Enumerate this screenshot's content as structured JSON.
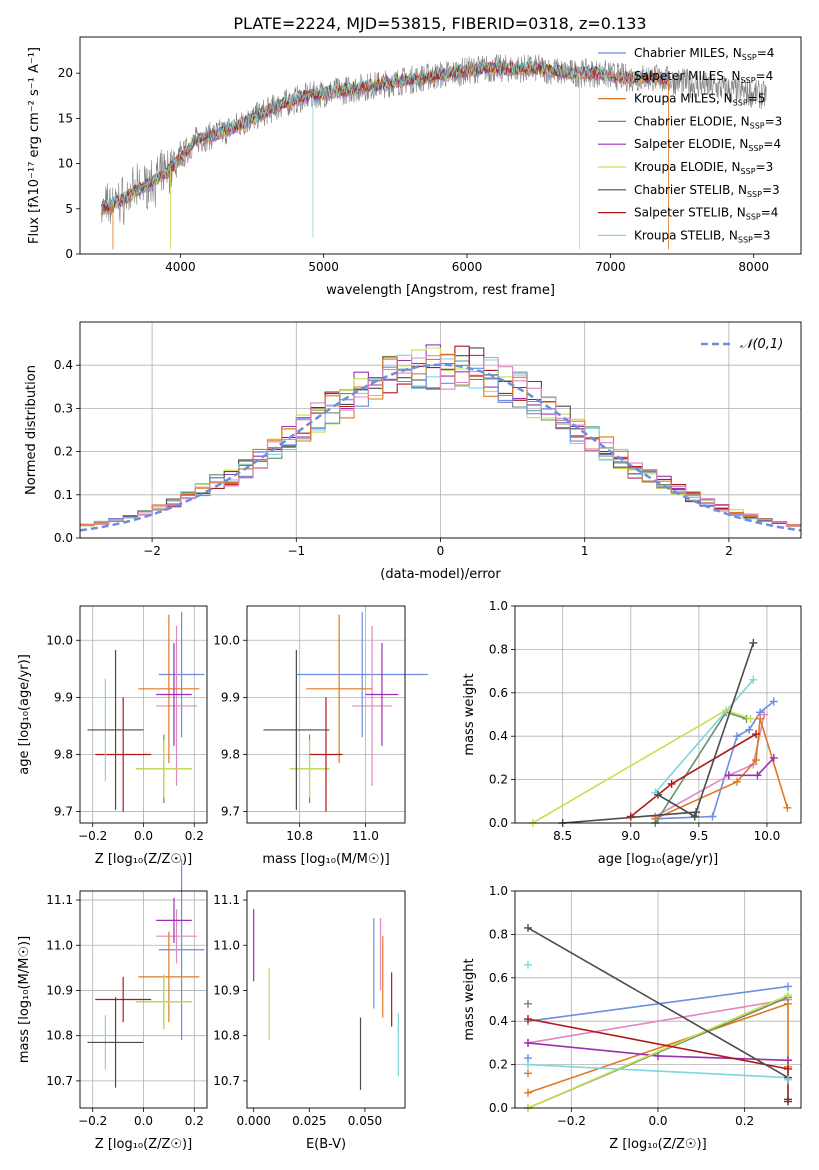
{
  "figure": {
    "title": "PLATE=2224, MJD=53815, FIBERID=0318, z=0.133"
  },
  "colors": {
    "series": [
      "#6b8e6b",
      "#9b30b0",
      "#c8e050",
      "#4c4c4c",
      "#b01818",
      "#7fd6dc",
      "#6a8ee0",
      "#e07820",
      "#e088c0"
    ]
  },
  "legend_spectrum": [
    {
      "label": "Chabrier MILES, N",
      "sub": "SSP",
      "tail": "=4",
      "color": "#6a8ee0"
    },
    {
      "label": "Salpeter MILES, N",
      "sub": "SSP",
      "tail": "=4",
      "color": "#e088c0"
    },
    {
      "label": "Kroupa MILES, N",
      "sub": "SSP",
      "tail": "=5",
      "color": "#e07820"
    },
    {
      "label": "Chabrier ELODIE, N",
      "sub": "SSP",
      "tail": "=3",
      "color": "#6b8e6b"
    },
    {
      "label": "Salpeter ELODIE, N",
      "sub": "SSP",
      "tail": "=4",
      "color": "#9b30b0"
    },
    {
      "label": "Kroupa ELODIE, N",
      "sub": "SSP",
      "tail": "=3",
      "color": "#c8e050"
    },
    {
      "label": "Chabrier STELIB, N",
      "sub": "SSP",
      "tail": "=3",
      "color": "#4c4c4c"
    },
    {
      "label": "Salpeter STELIB, N",
      "sub": "SSP",
      "tail": "=4",
      "color": "#b01818"
    },
    {
      "label": "Kroupa STELIB, N",
      "sub": "SSP",
      "tail": "=3",
      "color": "#7fd6dc"
    }
  ],
  "chart_data": [
    {
      "id": "spectrum",
      "type": "line",
      "title": "PLATE=2224, MJD=53815, FIBERID=0318, z=0.133",
      "xlabel": "wavelength [Angstrom, rest frame]",
      "ylabel": "Flux [fλ10⁻¹⁷ erg cm⁻² s⁻¹ A⁻¹]",
      "xlim": [
        3300,
        8330
      ],
      "ylim": [
        0,
        24
      ],
      "xticks": [
        4000,
        5000,
        6000,
        7000,
        8000
      ],
      "yticks": [
        0,
        5,
        10,
        15,
        20
      ],
      "grid": false,
      "legend": "upper-right",
      "data_envelope": {
        "x": [
          3450,
          3600,
          3750,
          3900,
          4000,
          4100,
          4300,
          4500,
          4700,
          4900,
          5100,
          5300,
          5500,
          5700,
          5900,
          6100,
          6300,
          6500,
          6700,
          6900,
          7100,
          7300,
          7500,
          7700,
          7900,
          8090
        ],
        "y": [
          5.0,
          6.0,
          7.5,
          9.0,
          10.5,
          12.5,
          13.5,
          15.0,
          16.5,
          17.5,
          18.0,
          18.5,
          19.0,
          19.5,
          20.0,
          20.5,
          20.5,
          20.5,
          20.0,
          20.0,
          19.5,
          19.5,
          19.0,
          18.5,
          18.0,
          17.5
        ]
      },
      "model_x_range": [
        3450,
        7420
      ]
    },
    {
      "id": "residuals",
      "type": "histogram",
      "xlabel": "(data-model)/error",
      "ylabel": "Normed distribution",
      "xlim": [
        -2.5,
        2.5
      ],
      "ylim": [
        0,
        0.5
      ],
      "xticks": [
        -2,
        -1,
        0,
        1,
        2
      ],
      "yticks": [
        0.0,
        0.1,
        0.2,
        0.3,
        0.4
      ],
      "grid": true,
      "legend": "upper-right",
      "reference": {
        "name": "𝒩(0,1)",
        "mean": 0,
        "sigma": 1
      }
    },
    {
      "id": "age_vs_Z",
      "type": "scatter",
      "xlabel": "Z [log₁₀(Z/Z☉)]",
      "ylabel": "age [log₁₀(age/yr)]",
      "xlim": [
        -0.25,
        0.25
      ],
      "ylim": [
        9.68,
        10.06
      ],
      "xticks": [
        -0.2,
        0.0,
        0.2
      ],
      "yticks": [
        9.7,
        9.8,
        9.9,
        10.0
      ],
      "grid": true,
      "points": [
        {
          "x": 0.15,
          "y": 9.94,
          "xerr": 0.09,
          "yerr": 0.11,
          "c": 6
        },
        {
          "x": 0.13,
          "y": 9.885,
          "xerr": 0.08,
          "yerr": 0.14,
          "c": 8
        },
        {
          "x": 0.1,
          "y": 9.915,
          "xerr": 0.12,
          "yerr": 0.13,
          "c": 7
        },
        {
          "x": 0.12,
          "y": 9.905,
          "xerr": 0.07,
          "yerr": 0.09,
          "c": 1
        },
        {
          "x": 0.08,
          "y": 9.775,
          "xerr": 0.11,
          "yerr": 0.06,
          "c": 0
        },
        {
          "x": 0.08,
          "y": 9.775,
          "xerr": 0.11,
          "yerr": 0.05,
          "c": 2
        },
        {
          "x": -0.08,
          "y": 9.8,
          "xerr": 0.11,
          "yerr": 0.1,
          "c": 4
        },
        {
          "x": -0.15,
          "y": 9.843,
          "xerr": 0.07,
          "yerr": 0.09,
          "c": 5
        },
        {
          "x": -0.11,
          "y": 9.843,
          "xerr": 0.11,
          "yerr": 0.14,
          "c": 3
        }
      ]
    },
    {
      "id": "age_vs_mass",
      "type": "scatter",
      "xlabel": "mass [log₁₀(M/M☉)]",
      "ylabel": "",
      "xlim": [
        10.64,
        11.12
      ],
      "ylim": [
        9.68,
        10.06
      ],
      "xticks": [
        10.8,
        11.0
      ],
      "yticks": [
        9.7,
        9.8,
        9.9,
        10.0
      ],
      "grid": true,
      "points": [
        {
          "x": 10.99,
          "y": 9.94,
          "xerr": 0.2,
          "yerr": 0.11,
          "c": 6
        },
        {
          "x": 11.02,
          "y": 9.885,
          "xerr": 0.06,
          "yerr": 0.14,
          "c": 8
        },
        {
          "x": 10.92,
          "y": 9.915,
          "xerr": 0.1,
          "yerr": 0.13,
          "c": 7
        },
        {
          "x": 11.05,
          "y": 9.905,
          "xerr": 0.05,
          "yerr": 0.09,
          "c": 1
        },
        {
          "x": 10.83,
          "y": 9.775,
          "xerr": 0.06,
          "yerr": 0.06,
          "c": 0
        },
        {
          "x": 10.83,
          "y": 9.775,
          "xerr": 0.06,
          "yerr": 0.05,
          "c": 2
        },
        {
          "x": 10.88,
          "y": 9.8,
          "xerr": 0.05,
          "yerr": 0.1,
          "c": 4
        },
        {
          "x": 10.79,
          "y": 9.843,
          "xerr": 0.06,
          "yerr": 0.09,
          "c": 5
        },
        {
          "x": 10.79,
          "y": 9.843,
          "xerr": 0.1,
          "yerr": 0.14,
          "c": 3
        }
      ]
    },
    {
      "id": "weight_vs_age",
      "type": "line",
      "xlabel": "age [log₁₀(age/yr)]",
      "ylabel": "mass weight",
      "xlim": [
        8.15,
        10.25
      ],
      "ylim": [
        0,
        1
      ],
      "xticks": [
        8.5,
        9.0,
        9.5,
        10.0
      ],
      "yticks": [
        0.0,
        0.2,
        0.4,
        0.6,
        0.8,
        1.0
      ],
      "grid": true,
      "series": [
        {
          "c": 6,
          "x": [
            9.2,
            9.6,
            9.78,
            9.87,
            9.95,
            10.05
          ],
          "y": [
            0.02,
            0.03,
            0.4,
            0.43,
            0.51,
            0.56
          ]
        },
        {
          "c": 8,
          "x": [
            9.18,
            9.72,
            9.9,
            9.98
          ],
          "y": [
            0.03,
            0.22,
            0.27,
            0.5
          ]
        },
        {
          "c": 7,
          "x": [
            9.18,
            9.78,
            9.92,
            9.95,
            10.15
          ],
          "y": [
            0.02,
            0.19,
            0.29,
            0.48,
            0.07
          ]
        },
        {
          "c": 1,
          "x": [
            9.72,
            9.93,
            10.05
          ],
          "y": [
            0.22,
            0.22,
            0.3
          ]
        },
        {
          "c": 0,
          "x": [
            9.18,
            9.7,
            9.85
          ],
          "y": [
            0.0,
            0.51,
            0.48
          ]
        },
        {
          "c": 2,
          "x": [
            8.28,
            9.7,
            9.88
          ],
          "y": [
            0.0,
            0.52,
            0.48
          ]
        },
        {
          "c": 4,
          "x": [
            9.0,
            9.3,
            9.92
          ],
          "y": [
            0.03,
            0.18,
            0.41
          ]
        },
        {
          "c": 5,
          "x": [
            9.18,
            9.9
          ],
          "y": [
            0.14,
            0.66
          ]
        },
        {
          "c": 3,
          "x": [
            8.5,
            9.48,
            9.9
          ],
          "y": [
            0.0,
            0.05,
            0.83
          ]
        },
        {
          "c": 3,
          "x": [
            9.2,
            9.47
          ],
          "y": [
            0.13,
            0.03
          ]
        }
      ]
    },
    {
      "id": "mass_vs_Z",
      "type": "scatter",
      "xlabel": "Z [log₁₀(Z/Z☉)]",
      "ylabel": "mass [log₁₀(M/M☉)]",
      "xlim": [
        -0.25,
        0.25
      ],
      "ylim": [
        10.64,
        11.12
      ],
      "xticks": [
        -0.2,
        0.0,
        0.2
      ],
      "yticks": [
        10.7,
        10.8,
        10.9,
        11.0,
        11.1
      ],
      "grid": true,
      "points": [
        {
          "x": 0.15,
          "y": 10.99,
          "xerr": 0.09,
          "yerr": 0.2,
          "c": 6
        },
        {
          "x": 0.13,
          "y": 11.02,
          "xerr": 0.08,
          "yerr": 0.06,
          "c": 8
        },
        {
          "x": 0.1,
          "y": 10.93,
          "xerr": 0.12,
          "yerr": 0.1,
          "c": 7
        },
        {
          "x": 0.12,
          "y": 11.055,
          "xerr": 0.07,
          "yerr": 0.05,
          "c": 1
        },
        {
          "x": 0.08,
          "y": 10.875,
          "xerr": 0.11,
          "yerr": 0.06,
          "c": 0
        },
        {
          "x": 0.08,
          "y": 10.875,
          "xerr": 0.11,
          "yerr": 0.06,
          "c": 2
        },
        {
          "x": -0.08,
          "y": 10.88,
          "xerr": 0.11,
          "yerr": 0.05,
          "c": 4
        },
        {
          "x": -0.15,
          "y": 10.785,
          "xerr": 0.07,
          "yerr": 0.06,
          "c": 5
        },
        {
          "x": -0.11,
          "y": 10.785,
          "xerr": 0.11,
          "yerr": 0.1,
          "c": 3
        }
      ]
    },
    {
      "id": "mass_vs_EBV",
      "type": "scatter",
      "xlabel": "E(B-V)",
      "ylabel": "",
      "xlim": [
        -0.003,
        0.068
      ],
      "ylim": [
        10.64,
        11.12
      ],
      "xticks": [
        0.0,
        0.025,
        0.05
      ],
      "yticks": [
        10.7,
        10.8,
        10.9,
        11.0,
        11.1
      ],
      "grid": false,
      "points": [
        {
          "x": 0.0,
          "y": 11.0,
          "yerr": 0.08,
          "c": 1
        },
        {
          "x": 0.007,
          "y": 10.87,
          "yerr": 0.08,
          "c": 2
        },
        {
          "x": 0.054,
          "y": 10.96,
          "yerr": 0.1,
          "c": 6
        },
        {
          "x": 0.057,
          "y": 10.98,
          "yerr": 0.08,
          "c": 8
        },
        {
          "x": 0.048,
          "y": 10.76,
          "yerr": 0.08,
          "c": 3
        },
        {
          "x": 0.062,
          "y": 10.88,
          "yerr": 0.06,
          "c": 4
        },
        {
          "x": 0.065,
          "y": 10.78,
          "yerr": 0.07,
          "c": 5
        },
        {
          "x": 0.058,
          "y": 10.93,
          "yerr": 0.09,
          "c": 7
        }
      ]
    },
    {
      "id": "weight_vs_Z",
      "type": "line",
      "xlabel": "Z [log₁₀(Z/Z☉)]",
      "ylabel": "mass weight",
      "xlim": [
        -0.33,
        0.33
      ],
      "ylim": [
        0,
        1
      ],
      "xticks": [
        -0.2,
        0.0,
        0.2
      ],
      "yticks": [
        0.0,
        0.2,
        0.4,
        0.6,
        0.8,
        1.0
      ],
      "grid": true,
      "series": [
        {
          "c": 6,
          "x": [
            -0.3,
            0.3
          ],
          "y": [
            0.4,
            0.56
          ]
        },
        {
          "c": 8,
          "x": [
            -0.3,
            0.3
          ],
          "y": [
            0.3,
            0.5
          ]
        },
        {
          "c": 7,
          "x": [
            -0.3,
            0.3,
            0.3
          ],
          "y": [
            0.07,
            0.48,
            0.19
          ]
        },
        {
          "c": 1,
          "x": [
            -0.3,
            0.0,
            0.3
          ],
          "y": [
            0.3,
            0.24,
            0.22
          ]
        },
        {
          "c": 0,
          "x": [
            -0.3,
            0.3
          ],
          "y": [
            0.0,
            0.51
          ]
        },
        {
          "c": 2,
          "x": [
            -0.3,
            0.3
          ],
          "y": [
            0.0,
            0.52
          ]
        },
        {
          "c": 4,
          "x": [
            -0.3,
            0.3,
            0.3
          ],
          "y": [
            0.41,
            0.18,
            0.03
          ]
        },
        {
          "c": 5,
          "x": [
            -0.3,
            0.3
          ],
          "y": [
            0.2,
            0.14
          ]
        },
        {
          "c": 3,
          "x": [
            -0.3,
            0.3
          ],
          "y": [
            0.83,
            0.14
          ]
        }
      ],
      "markers": [
        {
          "x": -0.3,
          "y": 0.66,
          "c": 5
        },
        {
          "x": -0.3,
          "y": 0.48,
          "c": 0
        },
        {
          "x": -0.3,
          "y": 0.23,
          "c": 6
        },
        {
          "x": -0.3,
          "y": 0.16,
          "c": 7
        },
        {
          "x": 0.3,
          "y": 0.04,
          "c": 3
        },
        {
          "x": 0.3,
          "y": 0.13,
          "c": 5
        }
      ]
    }
  ]
}
